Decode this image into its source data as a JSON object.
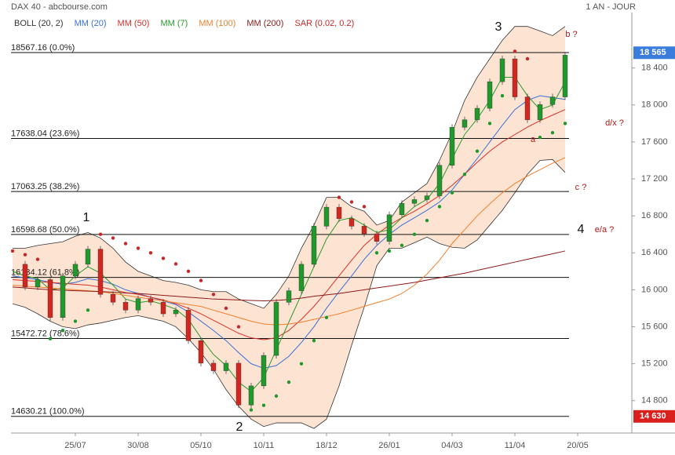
{
  "chart_data": {
    "type": "stock",
    "title": "DAX 40 - abcbourse.com",
    "period": "1 AN - JOUR",
    "categories": [
      null,
      null,
      null,
      null,
      null,
      "25/07",
      null,
      null,
      null,
      null,
      "30/08",
      null,
      null,
      null,
      null,
      "05/10",
      null,
      null,
      null,
      null,
      "10/11",
      null,
      null,
      null,
      null,
      "18/12",
      null,
      null,
      null,
      null,
      "26/01",
      null,
      null,
      null,
      null,
      "04/03",
      null,
      null,
      null,
      null,
      "11/04",
      null,
      null,
      null,
      null,
      "20/05"
    ],
    "values": [
      16276,
      16030,
      16110,
      15700,
      16150,
      16276,
      16440,
      15950,
      15865,
      15780,
      15905,
      15865,
      15740,
      15780,
      15450,
      15206,
      15124,
      15206,
      14753,
      14960,
      15290,
      15865,
      15990,
      16276,
      16688,
      16894,
      16770,
      16688,
      16606,
      16523,
      16812,
      16935,
      16976,
      17017,
      17347,
      17758,
      17840,
      17964,
      18252,
      18499,
      18087,
      17840,
      18005,
      18087,
      18540,
      null
    ],
    "up_color": "#1f9a2a",
    "down_color": "#d3261f",
    "series": [
      {
        "name": "BOLL (20, 2)",
        "color": "#333333",
        "fill": "#fde3d2",
        "upper": [
          16450,
          16450,
          16480,
          16500,
          16520,
          16580,
          16620,
          16560,
          16450,
          16300,
          16200,
          16150,
          16100,
          16080,
          16050,
          16000,
          15980,
          15980,
          15900,
          15850,
          15800,
          15950,
          16150,
          16450,
          16700,
          17000,
          17000,
          16900,
          16850,
          16700,
          16750,
          16950,
          17050,
          17150,
          17400,
          17700,
          18050,
          18300,
          18500,
          18700,
          18850,
          18850,
          18800,
          18750,
          18850,
          null
        ],
        "lower": [
          15850,
          15810,
          15740,
          15660,
          15600,
          15580,
          15620,
          15640,
          15670,
          15700,
          15720,
          15690,
          15660,
          15600,
          15470,
          15320,
          15140,
          14920,
          14740,
          14600,
          14520,
          14560,
          14560,
          14560,
          14500,
          14600,
          14960,
          15400,
          15810,
          16260,
          16450,
          16450,
          16510,
          16570,
          16500,
          16460,
          16450,
          16540,
          16700,
          16860,
          17050,
          17250,
          17400,
          17410,
          17270,
          null
        ]
      },
      {
        "name": "MM (20)",
        "color": "#3a6fd8",
        "values": [
          16150,
          16130,
          16110,
          16080,
          16060,
          16080,
          16120,
          16100,
          16060,
          16000,
          15960,
          15920,
          15880,
          15840,
          15760,
          15660,
          15560,
          15450,
          15320,
          15200,
          15150,
          15180,
          15280,
          15430,
          15600,
          15800,
          15980,
          16150,
          16330,
          16480,
          16600,
          16700,
          16780,
          16860,
          16950,
          17080,
          17250,
          17420,
          17600,
          17780,
          17950,
          18050,
          18100,
          18080,
          18060,
          null
        ]
      },
      {
        "name": "MM (50)",
        "color": "#d8302a",
        "values": [
          16110,
          16100,
          16090,
          16080,
          16070,
          16060,
          16050,
          16030,
          16000,
          15970,
          15950,
          15920,
          15890,
          15850,
          15800,
          15740,
          15670,
          15600,
          15530,
          15480,
          15460,
          15480,
          15560,
          15680,
          15820,
          15980,
          16150,
          16320,
          16480,
          16600,
          16700,
          16780,
          16850,
          16930,
          17020,
          17130,
          17250,
          17380,
          17500,
          17600,
          17680,
          17760,
          17830,
          17890,
          17950,
          null
        ]
      },
      {
        "name": "MM (7)",
        "color": "#2a9a2a",
        "values": [
          16200,
          16150,
          16120,
          16000,
          16020,
          16150,
          16250,
          16180,
          16050,
          15900,
          15860,
          15880,
          15840,
          15790,
          15680,
          15480,
          15300,
          15180,
          15000,
          14900,
          15050,
          15350,
          15650,
          15950,
          16250,
          16550,
          16750,
          16780,
          16700,
          16620,
          16650,
          16780,
          16900,
          16980,
          17150,
          17420,
          17680,
          17850,
          18050,
          18300,
          18300,
          18100,
          17950,
          18000,
          18250,
          null
        ]
      },
      {
        "name": "MM (100)",
        "color": "#f07f2a",
        "values": [
          16050,
          16040,
          16030,
          16020,
          16010,
          16000,
          15990,
          15980,
          15960,
          15940,
          15920,
          15900,
          15880,
          15860,
          15840,
          15820,
          15780,
          15740,
          15700,
          15660,
          15630,
          15620,
          15630,
          15650,
          15680,
          15710,
          15740,
          15780,
          15820,
          15860,
          15900,
          15960,
          16050,
          16170,
          16320,
          16500,
          16650,
          16800,
          16930,
          17050,
          17150,
          17230,
          17300,
          17370,
          17430,
          null
        ]
      },
      {
        "name": "MM (200)",
        "color": "#8b1a1a",
        "values": [
          16030,
          16020,
          16010,
          16000,
          15995,
          15990,
          15985,
          15980,
          15975,
          15965,
          15960,
          15950,
          15940,
          15930,
          15920,
          15910,
          15900,
          15895,
          15890,
          15885,
          15880,
          15885,
          15895,
          15910,
          15930,
          15945,
          15960,
          15980,
          16000,
          16020,
          16040,
          16060,
          16080,
          16105,
          16130,
          16155,
          16180,
          16210,
          16240,
          16270,
          16300,
          16330,
          16360,
          16390,
          16420,
          null
        ]
      },
      {
        "name": "SAR (0.02, 0.2)",
        "color": "#c62828",
        "color_below": "#1f9a2a",
        "values": [
          16420,
          16380,
          16330,
          15470,
          15560,
          15660,
          15780,
          16600,
          16560,
          16500,
          16450,
          16400,
          16340,
          16280,
          16200,
          16100,
          15950,
          15800,
          15600,
          14700,
          14750,
          14850,
          15000,
          15200,
          15450,
          15700,
          17000,
          16950,
          16900,
          16400,
          16420,
          16480,
          16600,
          16750,
          16900,
          17050,
          17250,
          17500,
          17800,
          18100,
          18580,
          18500,
          17650,
          17700,
          17800,
          null
        ]
      }
    ],
    "levels": [
      {
        "value": 18567.16,
        "label": "18567.16  (0.0%)"
      },
      {
        "value": 17638.04,
        "label": "17638.04  (23.6%)"
      },
      {
        "value": 17063.25,
        "label": "17063.25  (38.2%)"
      },
      {
        "value": 16598.68,
        "label": "16598.68  (50.0%)"
      },
      {
        "value": 16134.12,
        "label": "16134.12  (61.8%)"
      },
      {
        "value": 15472.72,
        "label": "15472.72  (78.6%)"
      },
      {
        "value": 14630.21,
        "label": "14630.21  (100.0%)"
      }
    ],
    "markers": [
      {
        "value": 18565,
        "label": "18 565",
        "color": "#3b7ddd"
      },
      {
        "value": 14630,
        "label": "14 630",
        "color": "#d9201c"
      }
    ],
    "annotations": [
      "1",
      "2",
      "3",
      "4",
      "a",
      "b ?",
      "c ?",
      "d/x ?",
      "e/a ?"
    ],
    "ylim": [
      14450,
      19000
    ],
    "yticks": [
      {
        "value": 14800,
        "label": "14 800"
      },
      {
        "value": 15200,
        "label": "15 200"
      },
      {
        "value": 15600,
        "label": "15 600"
      },
      {
        "value": 16000,
        "label": "16 000"
      },
      {
        "value": 16400,
        "label": "16 400"
      },
      {
        "value": 16800,
        "label": "16 800"
      },
      {
        "value": 17200,
        "label": "17 200"
      },
      {
        "value": 17600,
        "label": "17 600"
      },
      {
        "value": 18000,
        "label": "18 000"
      },
      {
        "value": 18400,
        "label": "18 400"
      }
    ]
  }
}
